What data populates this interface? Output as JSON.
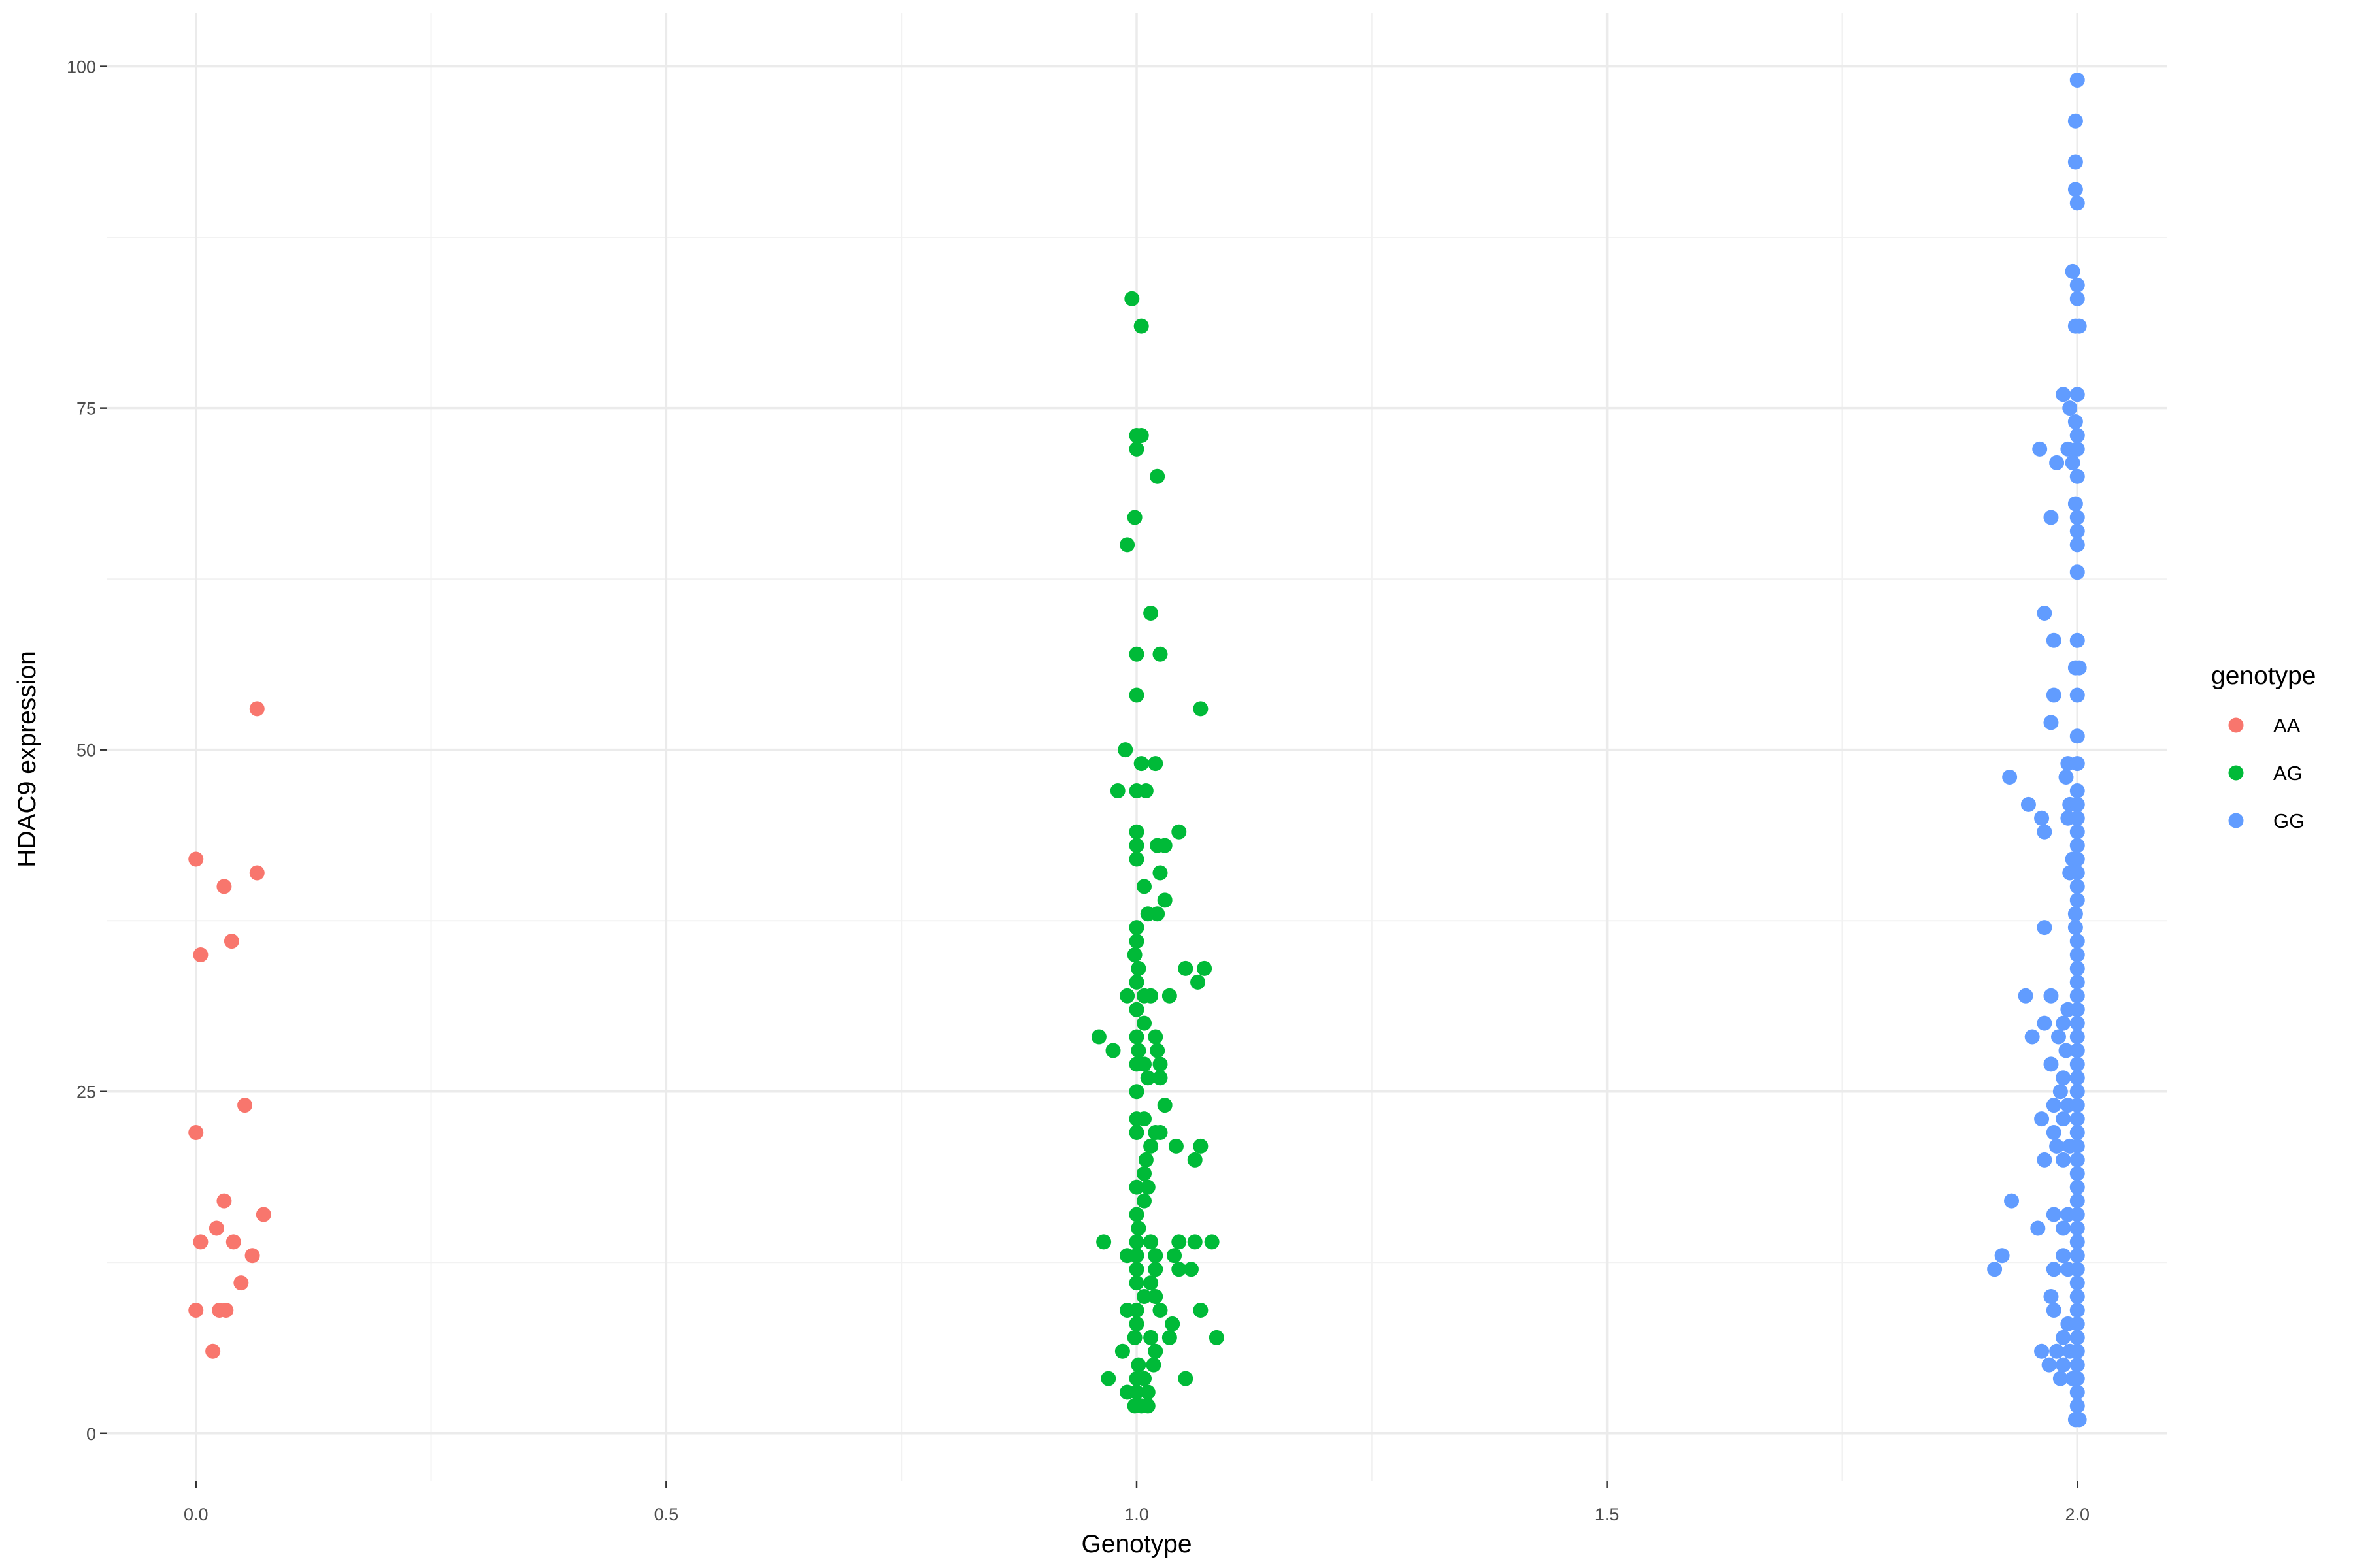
{
  "chart_data": {
    "type": "scatter",
    "xlabel": "Genotype",
    "ylabel": "HDAC9 expression",
    "xlim": [
      -0.095,
      2.095
    ],
    "ylim": [
      -3.5,
      103.9
    ],
    "x_ticks": [
      0,
      0.5,
      1,
      1.5,
      2
    ],
    "x_tick_labels": [
      "0.0",
      "0.5",
      "1.0",
      "1.5",
      "2.0"
    ],
    "y_ticks": [
      0,
      25,
      50,
      75,
      100
    ],
    "y_tick_labels": [
      "0",
      "25",
      "50",
      "75",
      "100"
    ],
    "grid": true,
    "legend": {
      "title": "genotype",
      "placement": "right",
      "entries": [
        {
          "label": "AA",
          "color": "#F8766D"
        },
        {
          "label": "AG",
          "color": "#00BA38"
        },
        {
          "label": "GG",
          "color": "#619CFF"
        }
      ]
    },
    "series": [
      {
        "name": "AA",
        "color": "#F8766D",
        "points": [
          [
            0.065,
            53
          ],
          [
            0.0,
            42
          ],
          [
            0.065,
            41
          ],
          [
            0.03,
            40
          ],
          [
            0.038,
            36
          ],
          [
            0.005,
            35
          ],
          [
            0.052,
            24
          ],
          [
            0.0,
            22
          ],
          [
            0.03,
            17
          ],
          [
            0.072,
            16
          ],
          [
            0.022,
            15
          ],
          [
            0.005,
            14
          ],
          [
            0.04,
            14
          ],
          [
            0.06,
            13
          ],
          [
            0.048,
            11
          ],
          [
            0.0,
            9
          ],
          [
            0.025,
            9
          ],
          [
            0.032,
            9
          ],
          [
            0.018,
            6
          ]
        ]
      },
      {
        "name": "AG",
        "color": "#00BA38",
        "points": [
          [
            0.995,
            83
          ],
          [
            1.005,
            81
          ],
          [
            1.0,
            73
          ],
          [
            1.005,
            73
          ],
          [
            1.0,
            72
          ],
          [
            1.022,
            70
          ],
          [
            0.998,
            67
          ],
          [
            0.99,
            65
          ],
          [
            1.015,
            60
          ],
          [
            1.0,
            57
          ],
          [
            1.025,
            57
          ],
          [
            1.0,
            54
          ],
          [
            1.068,
            53
          ],
          [
            0.988,
            50
          ],
          [
            1.005,
            49
          ],
          [
            1.02,
            49
          ],
          [
            0.98,
            47
          ],
          [
            1.0,
            47
          ],
          [
            1.01,
            47
          ],
          [
            1.0,
            44
          ],
          [
            1.045,
            44
          ],
          [
            1.0,
            43
          ],
          [
            1.022,
            43
          ],
          [
            1.03,
            43
          ],
          [
            1.0,
            42
          ],
          [
            1.025,
            41
          ],
          [
            1.008,
            40
          ],
          [
            1.03,
            39
          ],
          [
            1.012,
            38
          ],
          [
            1.022,
            38
          ],
          [
            1.0,
            37
          ],
          [
            1.0,
            36
          ],
          [
            0.998,
            35
          ],
          [
            1.002,
            34
          ],
          [
            1.052,
            34
          ],
          [
            1.072,
            34
          ],
          [
            1.0,
            33
          ],
          [
            1.065,
            33
          ],
          [
            0.99,
            32
          ],
          [
            1.008,
            32
          ],
          [
            1.015,
            32
          ],
          [
            1.035,
            32
          ],
          [
            1.0,
            31
          ],
          [
            1.008,
            30
          ],
          [
            0.96,
            29
          ],
          [
            1.0,
            29
          ],
          [
            1.02,
            29
          ],
          [
            0.975,
            28
          ],
          [
            1.002,
            28
          ],
          [
            1.022,
            28
          ],
          [
            1.0,
            27
          ],
          [
            1.008,
            27
          ],
          [
            1.025,
            27
          ],
          [
            1.012,
            26
          ],
          [
            1.025,
            26
          ],
          [
            1.0,
            25
          ],
          [
            1.03,
            24
          ],
          [
            1.0,
            23
          ],
          [
            1.008,
            23
          ],
          [
            1.0,
            22
          ],
          [
            1.02,
            22
          ],
          [
            1.025,
            22
          ],
          [
            1.015,
            21
          ],
          [
            1.042,
            21
          ],
          [
            1.068,
            21
          ],
          [
            1.01,
            20
          ],
          [
            1.062,
            20
          ],
          [
            1.008,
            19
          ],
          [
            1.0,
            18
          ],
          [
            1.012,
            18
          ],
          [
            1.008,
            17
          ],
          [
            1.0,
            16
          ],
          [
            1.002,
            15
          ],
          [
            0.965,
            14
          ],
          [
            1.0,
            14
          ],
          [
            1.015,
            14
          ],
          [
            1.045,
            14
          ],
          [
            1.062,
            14
          ],
          [
            1.08,
            14
          ],
          [
            0.99,
            13
          ],
          [
            1.0,
            13
          ],
          [
            1.02,
            13
          ],
          [
            1.04,
            13
          ],
          [
            1.0,
            12
          ],
          [
            1.02,
            12
          ],
          [
            1.045,
            12
          ],
          [
            1.058,
            12
          ],
          [
            1.0,
            11
          ],
          [
            1.015,
            11
          ],
          [
            1.008,
            10
          ],
          [
            1.02,
            10
          ],
          [
            0.99,
            9
          ],
          [
            1.0,
            9
          ],
          [
            1.025,
            9
          ],
          [
            1.068,
            9
          ],
          [
            1.0,
            8
          ],
          [
            1.038,
            8
          ],
          [
            0.998,
            7
          ],
          [
            1.015,
            7
          ],
          [
            1.035,
            7
          ],
          [
            1.085,
            7
          ],
          [
            0.985,
            6
          ],
          [
            1.02,
            6
          ],
          [
            1.002,
            5
          ],
          [
            1.018,
            5
          ],
          [
            0.97,
            4
          ],
          [
            1.0,
            4
          ],
          [
            1.008,
            4
          ],
          [
            1.052,
            4
          ],
          [
            0.99,
            3
          ],
          [
            1.0,
            3
          ],
          [
            1.012,
            3
          ],
          [
            0.998,
            2
          ],
          [
            1.005,
            2
          ],
          [
            1.012,
            2
          ]
        ]
      },
      {
        "name": "GG",
        "color": "#619CFF",
        "points": [
          [
            2.0,
            99
          ],
          [
            1.998,
            96
          ],
          [
            1.998,
            93
          ],
          [
            1.998,
            91
          ],
          [
            2.0,
            90
          ],
          [
            1.995,
            85
          ],
          [
            2.0,
            84
          ],
          [
            2.0,
            83
          ],
          [
            1.998,
            81
          ],
          [
            2.002,
            81
          ],
          [
            1.985,
            76
          ],
          [
            2.0,
            76
          ],
          [
            1.992,
            75
          ],
          [
            1.998,
            74
          ],
          [
            2.0,
            73
          ],
          [
            1.96,
            72
          ],
          [
            1.99,
            72
          ],
          [
            2.0,
            72
          ],
          [
            1.978,
            71
          ],
          [
            1.995,
            71
          ],
          [
            2.0,
            70
          ],
          [
            1.998,
            68
          ],
          [
            1.972,
            67
          ],
          [
            2.0,
            67
          ],
          [
            2.0,
            66
          ],
          [
            2.0,
            65
          ],
          [
            2.0,
            63
          ],
          [
            1.965,
            60
          ],
          [
            1.975,
            58
          ],
          [
            2.0,
            58
          ],
          [
            1.998,
            56
          ],
          [
            2.002,
            56
          ],
          [
            1.975,
            54
          ],
          [
            2.0,
            54
          ],
          [
            1.972,
            52
          ],
          [
            2.0,
            51
          ],
          [
            1.99,
            49
          ],
          [
            2.0,
            49
          ],
          [
            1.928,
            48
          ],
          [
            1.988,
            48
          ],
          [
            2.0,
            47
          ],
          [
            1.992,
            46
          ],
          [
            2.0,
            46
          ],
          [
            1.948,
            46
          ],
          [
            1.962,
            45
          ],
          [
            1.99,
            45
          ],
          [
            2.0,
            45
          ],
          [
            1.965,
            44
          ],
          [
            2.0,
            44
          ],
          [
            2.0,
            43
          ],
          [
            1.995,
            42
          ],
          [
            2.0,
            42
          ],
          [
            1.992,
            41
          ],
          [
            2.0,
            41
          ],
          [
            2.0,
            40
          ],
          [
            2.0,
            39
          ],
          [
            1.998,
            38
          ],
          [
            1.965,
            37
          ],
          [
            1.998,
            37
          ],
          [
            2.0,
            36
          ],
          [
            2.0,
            35
          ],
          [
            2.0,
            34
          ],
          [
            2.0,
            33
          ],
          [
            1.945,
            32
          ],
          [
            1.972,
            32
          ],
          [
            2.0,
            32
          ],
          [
            2.0,
            31
          ],
          [
            1.99,
            31
          ],
          [
            1.965,
            30
          ],
          [
            1.985,
            30
          ],
          [
            2.0,
            30
          ],
          [
            1.952,
            29
          ],
          [
            1.98,
            29
          ],
          [
            2.0,
            29
          ],
          [
            1.988,
            28
          ],
          [
            2.0,
            28
          ],
          [
            1.972,
            27
          ],
          [
            2.0,
            27
          ],
          [
            1.985,
            26
          ],
          [
            2.0,
            26
          ],
          [
            1.982,
            25
          ],
          [
            2.0,
            25
          ],
          [
            1.975,
            24
          ],
          [
            1.99,
            24
          ],
          [
            2.0,
            24
          ],
          [
            1.962,
            23
          ],
          [
            1.985,
            23
          ],
          [
            2.0,
            23
          ],
          [
            1.975,
            22
          ],
          [
            2.0,
            22
          ],
          [
            1.978,
            21
          ],
          [
            1.992,
            21
          ],
          [
            2.0,
            21
          ],
          [
            1.965,
            20
          ],
          [
            1.985,
            20
          ],
          [
            2.0,
            20
          ],
          [
            2.0,
            19
          ],
          [
            2.0,
            18
          ],
          [
            1.93,
            17
          ],
          [
            2.0,
            17
          ],
          [
            1.975,
            16
          ],
          [
            1.99,
            16
          ],
          [
            2.0,
            16
          ],
          [
            1.958,
            15
          ],
          [
            1.985,
            15
          ],
          [
            2.0,
            15
          ],
          [
            2.0,
            14
          ],
          [
            1.92,
            13
          ],
          [
            1.985,
            13
          ],
          [
            2.0,
            13
          ],
          [
            1.912,
            12
          ],
          [
            1.975,
            12
          ],
          [
            1.99,
            12
          ],
          [
            2.0,
            12
          ],
          [
            2.0,
            11
          ],
          [
            1.972,
            10
          ],
          [
            2.0,
            10
          ],
          [
            1.975,
            9
          ],
          [
            2.0,
            9
          ],
          [
            1.99,
            8
          ],
          [
            2.0,
            8
          ],
          [
            1.985,
            7
          ],
          [
            2.0,
            7
          ],
          [
            1.962,
            6
          ],
          [
            1.978,
            6
          ],
          [
            1.992,
            6
          ],
          [
            2.0,
            6
          ],
          [
            1.97,
            5
          ],
          [
            1.985,
            5
          ],
          [
            2.0,
            5
          ],
          [
            1.982,
            4
          ],
          [
            1.995,
            4
          ],
          [
            2.0,
            4
          ],
          [
            2.0,
            3
          ],
          [
            2.0,
            2
          ],
          [
            1.998,
            1
          ],
          [
            2.002,
            1
          ]
        ]
      }
    ]
  }
}
